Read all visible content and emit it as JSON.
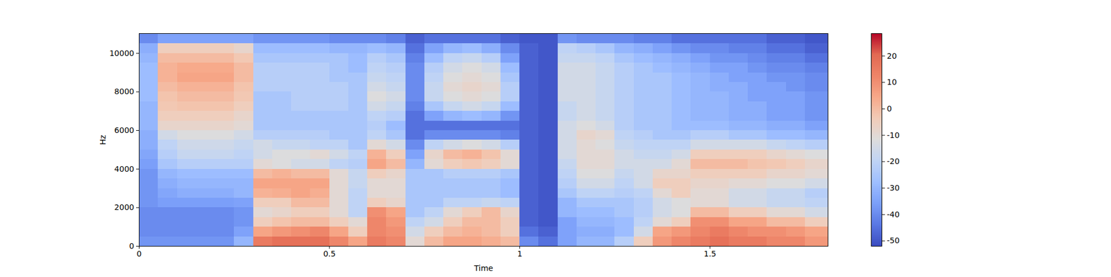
{
  "chart_data": {
    "type": "heatmap",
    "xlabel": "Time",
    "ylabel": "Hz",
    "xlim": [
      0,
      1.81
    ],
    "xticks": [
      0,
      0.5,
      1,
      1.5
    ],
    "ylim": [
      0,
      11025
    ],
    "yticks": [
      0,
      2000,
      4000,
      6000,
      8000,
      10000
    ],
    "x": [
      0,
      0.05,
      0.1,
      0.15,
      0.2,
      0.25,
      0.3,
      0.35,
      0.4,
      0.45,
      0.5,
      0.55,
      0.6,
      0.65,
      0.7,
      0.75,
      0.8,
      0.85,
      0.9,
      0.95,
      1.0,
      1.05,
      1.1,
      1.15,
      1.2,
      1.25,
      1.3,
      1.35,
      1.4,
      1.45,
      1.5,
      1.55,
      1.6,
      1.65,
      1.7,
      1.75,
      1.81
    ],
    "y": [
      0,
      500,
      1000,
      1500,
      2000,
      2500,
      3000,
      3500,
      4000,
      4500,
      5000,
      5500,
      6000,
      6500,
      7000,
      7500,
      8000,
      8500,
      9000,
      9500,
      10000,
      10500,
      11025
    ],
    "values": [
      [
        -38,
        -40,
        -40,
        -40,
        -38,
        -38,
        -38,
        -38,
        -36,
        -34,
        -32,
        -32,
        -30,
        -30,
        -30,
        -28,
        -28,
        -28,
        -28,
        -30,
        -32,
        -40
      ],
      [
        -38,
        -40,
        -40,
        -40,
        -36,
        -34,
        -32,
        -30,
        -25,
        -22,
        -20,
        -15,
        -8,
        -5,
        -3,
        -2,
        0,
        2,
        2,
        0,
        -5,
        -35
      ],
      [
        -38,
        -40,
        -40,
        -40,
        -36,
        -32,
        -30,
        -28,
        -22,
        -18,
        -16,
        -12,
        -8,
        -5,
        -2,
        0,
        2,
        5,
        4,
        0,
        -5,
        -35
      ],
      [
        -38,
        -40,
        -40,
        -40,
        -36,
        -32,
        -30,
        -28,
        -22,
        -18,
        -16,
        -12,
        -8,
        -5,
        -2,
        0,
        2,
        5,
        4,
        0,
        -5,
        -35
      ],
      [
        -38,
        -40,
        -40,
        -40,
        -36,
        -32,
        -30,
        -28,
        -22,
        -18,
        -16,
        -12,
        -8,
        -5,
        -2,
        0,
        2,
        5,
        4,
        0,
        -5,
        -35
      ],
      [
        -30,
        -35,
        -38,
        -38,
        -35,
        -30,
        -30,
        -28,
        -22,
        -20,
        -18,
        -15,
        -10,
        -8,
        -5,
        -3,
        -2,
        0,
        0,
        -3,
        -8,
        -35
      ],
      [
        15,
        5,
        -5,
        -10,
        -5,
        2,
        5,
        0,
        -10,
        -15,
        -15,
        -22,
        -25,
        -25,
        -25,
        -25,
        -22,
        -22,
        -22,
        -25,
        -28,
        -38
      ],
      [
        18,
        8,
        -2,
        -8,
        -5,
        3,
        5,
        2,
        -12,
        -12,
        -18,
        -22,
        -25,
        -25,
        -25,
        -25,
        -22,
        -22,
        -22,
        -25,
        -28,
        -38
      ],
      [
        18,
        10,
        0,
        -5,
        0,
        5,
        5,
        0,
        -15,
        -12,
        -18,
        -22,
        -25,
        -25,
        -22,
        -22,
        -22,
        -22,
        -22,
        -25,
        -28,
        -38
      ],
      [
        18,
        12,
        0,
        -5,
        0,
        3,
        5,
        0,
        -15,
        -10,
        -20,
        -22,
        -25,
        -25,
        -22,
        -22,
        -22,
        -22,
        -22,
        -25,
        -28,
        -38
      ],
      [
        12,
        5,
        -5,
        -10,
        -10,
        -10,
        -10,
        -10,
        -20,
        -15,
        -20,
        -25,
        -25,
        -25,
        -22,
        -22,
        -22,
        -25,
        -25,
        -25,
        -30,
        -40
      ],
      [
        5,
        -5,
        -10,
        -20,
        -20,
        -20,
        -18,
        -18,
        -22,
        -20,
        -25,
        -25,
        -25,
        -25,
        -25,
        -25,
        -25,
        -25,
        -28,
        -28,
        -30,
        -40
      ],
      [
        15,
        12,
        12,
        10,
        -5,
        -10,
        -10,
        -5,
        5,
        2,
        -10,
        -20,
        -22,
        -20,
        -15,
        -12,
        -15,
        -18,
        -20,
        -22,
        -28,
        -40
      ],
      [
        12,
        10,
        8,
        5,
        -8,
        -10,
        -10,
        -8,
        0,
        -5,
        -15,
        -25,
        -28,
        -22,
        -18,
        -15,
        -18,
        -20,
        -22,
        -25,
        -30,
        -42
      ],
      [
        -10,
        -15,
        -20,
        -25,
        -25,
        -25,
        -25,
        -25,
        -30,
        -35,
        -40,
        -45,
        -45,
        -45,
        -42,
        -40,
        -40,
        -40,
        -40,
        -42,
        -45,
        -48
      ],
      [
        0,
        -5,
        -15,
        -20,
        -25,
        -25,
        -25,
        -25,
        -10,
        -8,
        -20,
        -40,
        -45,
        -35,
        -25,
        -18,
        -18,
        -20,
        -22,
        -28,
        -35,
        -45
      ],
      [
        5,
        0,
        -5,
        -10,
        -20,
        -25,
        -25,
        -22,
        -5,
        0,
        -15,
        -40,
        -45,
        -30,
        -18,
        -12,
        -10,
        -12,
        -15,
        -20,
        -30,
        -45
      ],
      [
        5,
        2,
        0,
        -5,
        -20,
        -25,
        -25,
        -22,
        -3,
        2,
        -12,
        -40,
        -45,
        -28,
        -15,
        -10,
        -8,
        -10,
        -12,
        -18,
        -28,
        -45
      ],
      [
        3,
        0,
        0,
        0,
        -18,
        -25,
        -25,
        -22,
        -5,
        -2,
        -15,
        -40,
        -45,
        -30,
        -18,
        -12,
        -10,
        -12,
        -15,
        -22,
        -32,
        -45
      ],
      [
        0,
        -5,
        -5,
        -8,
        -20,
        -28,
        -28,
        -25,
        -10,
        -10,
        -22,
        -42,
        -45,
        -38,
        -28,
        -22,
        -22,
        -25,
        -28,
        -35,
        -40,
        -48
      ],
      [
        -40,
        -45,
        -48,
        -48,
        -48,
        -48,
        -48,
        -48,
        -48,
        -48,
        -48,
        -48,
        -48,
        -48,
        -48,
        -48,
        -48,
        -48,
        -48,
        -48,
        -48,
        -50
      ],
      [
        -45,
        -48,
        -50,
        -50,
        -50,
        -50,
        -50,
        -50,
        -50,
        -50,
        -50,
        -50,
        -50,
        -50,
        -50,
        -50,
        -50,
        -50,
        -50,
        -50,
        -50,
        -50
      ],
      [
        -35,
        -35,
        -35,
        -30,
        -30,
        -25,
        -22,
        -20,
        -18,
        -15,
        -15,
        -15,
        -15,
        -18,
        -18,
        -15,
        -15,
        -15,
        -15,
        -18,
        -20,
        -38
      ],
      [
        -30,
        -32,
        -30,
        -28,
        -25,
        -20,
        -15,
        -12,
        -10,
        -10,
        -10,
        -8,
        -12,
        -15,
        -15,
        -15,
        -15,
        -15,
        -15,
        -18,
        -22,
        -40
      ],
      [
        -30,
        -32,
        -30,
        -28,
        -25,
        -20,
        -15,
        -12,
        -10,
        -10,
        -12,
        -10,
        -15,
        -18,
        -18,
        -18,
        -18,
        -18,
        -18,
        -20,
        -25,
        -40
      ],
      [
        -22,
        -28,
        -28,
        -25,
        -25,
        -22,
        -20,
        -18,
        -15,
        -15,
        -18,
        -20,
        -22,
        -22,
        -22,
        -22,
        -22,
        -22,
        -22,
        -25,
        -30,
        -40
      ],
      [
        -5,
        -15,
        -20,
        -22,
        -22,
        -20,
        -15,
        -15,
        -15,
        -18,
        -20,
        -22,
        -25,
        -25,
        -25,
        -25,
        -25,
        -25,
        -25,
        -28,
        -32,
        -42
      ],
      [
        8,
        5,
        -10,
        -15,
        -15,
        -10,
        -5,
        -8,
        -15,
        -18,
        -20,
        -25,
        -25,
        -25,
        -25,
        -25,
        -25,
        -25,
        -28,
        -30,
        -35,
        -42
      ],
      [
        12,
        8,
        -5,
        -12,
        -12,
        -5,
        -5,
        -8,
        -10,
        -15,
        -20,
        -25,
        -28,
        -28,
        -28,
        -28,
        -28,
        -28,
        -30,
        -32,
        -38,
        -45
      ],
      [
        15,
        12,
        10,
        0,
        -10,
        -10,
        -8,
        -5,
        0,
        -5,
        -15,
        -22,
        -28,
        -30,
        -30,
        -30,
        -30,
        -30,
        -32,
        -35,
        -40,
        -45
      ],
      [
        18,
        15,
        10,
        0,
        -10,
        -10,
        -8,
        -5,
        0,
        -5,
        -15,
        -22,
        -28,
        -30,
        -30,
        -30,
        -32,
        -32,
        -35,
        -38,
        -40,
        -45
      ],
      [
        15,
        12,
        5,
        -5,
        -15,
        -15,
        -10,
        -5,
        0,
        -5,
        -15,
        -25,
        -30,
        -32,
        -32,
        -32,
        -32,
        -35,
        -35,
        -38,
        -42,
        -45
      ],
      [
        15,
        10,
        5,
        -5,
        -15,
        -15,
        -10,
        -5,
        -2,
        -5,
        -15,
        -25,
        -30,
        -32,
        -32,
        -35,
        -35,
        -35,
        -38,
        -40,
        -42,
        -45
      ],
      [
        12,
        10,
        0,
        -10,
        -18,
        -18,
        -12,
        -8,
        -3,
        -8,
        -18,
        -28,
        -32,
        -35,
        -35,
        -35,
        -35,
        -38,
        -40,
        -42,
        -45,
        -48
      ],
      [
        12,
        8,
        0,
        -10,
        -18,
        -18,
        -12,
        -8,
        -5,
        -10,
        -20,
        -28,
        -32,
        -35,
        -35,
        -35,
        -38,
        -38,
        -40,
        -42,
        -45,
        -48
      ],
      [
        8,
        5,
        -5,
        -15,
        -20,
        -22,
        -15,
        -10,
        -8,
        -12,
        -22,
        -30,
        -35,
        -38,
        -38,
        -38,
        -40,
        -40,
        -42,
        -45,
        -48,
        -50
      ]
    ],
    "colorbar": {
      "range": [
        -52,
        28.5
      ],
      "ticks": [
        -50,
        -40,
        -30,
        -20,
        -10,
        0,
        10,
        20
      ]
    }
  }
}
